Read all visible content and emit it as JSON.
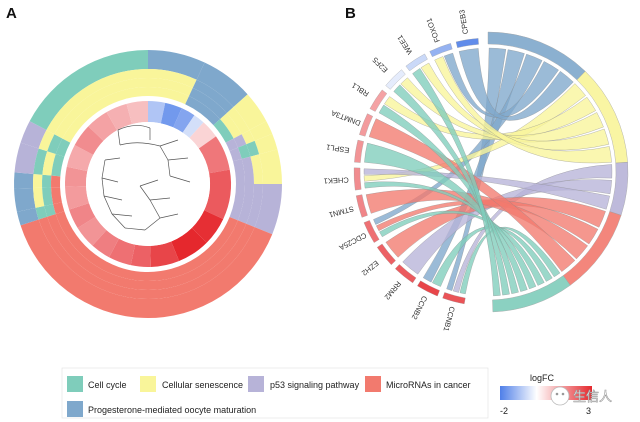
{
  "panels": {
    "a": "A",
    "b": "B"
  },
  "chart_data": [
    {
      "type": "circular-heatmap",
      "panel": "A",
      "title": "",
      "pathway_colors": {
        "Cell cycle": "#7fcdbb",
        "Cellular senescence": "#f9f59a",
        "p53 signaling pathway": "#b7b3d8",
        "MicroRNAs in cancer": "#f27a6e",
        "Progesterone-mediated oocyte maturation": "#7fa8cc"
      },
      "color_scale": {
        "low": -2,
        "high": 3,
        "low_color": "#4f7fe8",
        "mid_color": "#ffffff",
        "high_color": "#e5282d"
      }
    },
    {
      "type": "chord",
      "panel": "B",
      "title": "",
      "genes": [
        "CCNB1",
        "CCNB2",
        "RRM2",
        "EZH2",
        "CDC25A",
        "STMN1",
        "CHEK1",
        "ESPL1",
        "DNMT3A",
        "RBL1",
        "E2F5",
        "WEE1",
        "FOXO1",
        "CPEB3"
      ],
      "logFC": [
        2.4,
        2.6,
        2.3,
        2.2,
        2.0,
        1.7,
        1.6,
        1.5,
        1.4,
        1.3,
        -0.3,
        -0.6,
        -1.2,
        -1.8
      ],
      "pathways": [
        "Cell cycle",
        "Cellular senescence",
        "p53 signaling pathway",
        "MicroRNAs in cancer",
        "Progesterone-mediated oocyte maturation"
      ],
      "links": [
        {
          "gene": "CCNB1",
          "pathway": "Cell cycle"
        },
        {
          "gene": "CCNB1",
          "pathway": "p53 signaling pathway"
        },
        {
          "gene": "CCNB1",
          "pathway": "Progesterone-mediated oocyte maturation"
        },
        {
          "gene": "CCNB2",
          "pathway": "Cell cycle"
        },
        {
          "gene": "CCNB2",
          "pathway": "Progesterone-mediated oocyte maturation"
        },
        {
          "gene": "RRM2",
          "pathway": "p53 signaling pathway"
        },
        {
          "gene": "EZH2",
          "pathway": "MicroRNAs in cancer"
        },
        {
          "gene": "CDC25A",
          "pathway": "Cell cycle"
        },
        {
          "gene": "CDC25A",
          "pathway": "MicroRNAs in cancer"
        },
        {
          "gene": "CDC25A",
          "pathway": "Progesterone-mediated oocyte maturation"
        },
        {
          "gene": "STMN1",
          "pathway": "MicroRNAs in cancer"
        },
        {
          "gene": "CHEK1",
          "pathway": "Cell cycle"
        },
        {
          "gene": "CHEK1",
          "pathway": "Cellular senescence"
        },
        {
          "gene": "CHEK1",
          "pathway": "p53 signaling pathway"
        },
        {
          "gene": "ESPL1",
          "pathway": "Cell cycle"
        },
        {
          "gene": "DNMT3A",
          "pathway": "MicroRNAs in cancer"
        },
        {
          "gene": "RBL1",
          "pathway": "Cell cycle"
        },
        {
          "gene": "RBL1",
          "pathway": "Cellular senescence"
        },
        {
          "gene": "E2F5",
          "pathway": "Cell cycle"
        },
        {
          "gene": "E2F5",
          "pathway": "Cellular senescence"
        },
        {
          "gene": "WEE1",
          "pathway": "Cell cycle"
        },
        {
          "gene": "WEE1",
          "pathway": "Cellular senescence"
        },
        {
          "gene": "FOXO1",
          "pathway": "Cellular senescence"
        },
        {
          "gene": "FOXO1",
          "pathway": "Progesterone-mediated oocyte maturation"
        },
        {
          "gene": "CPEB3",
          "pathway": "Progesterone-mediated oocyte maturation"
        }
      ]
    }
  ],
  "legend": {
    "items": [
      {
        "label": "Cell cycle",
        "color": "#7fcdbb"
      },
      {
        "label": "Cellular senescence",
        "color": "#f9f59a"
      },
      {
        "label": "p53 signaling pathway",
        "color": "#b7b3d8"
      },
      {
        "label": "MicroRNAs in cancer",
        "color": "#f27a6e"
      },
      {
        "label": "Progesterone-mediated oocyte maturation",
        "color": "#7fa8cc"
      }
    ],
    "colorbar": {
      "title": "logFC",
      "min_label": "-2",
      "max_label": "3"
    }
  },
  "watermark": {
    "text": "生信人"
  }
}
